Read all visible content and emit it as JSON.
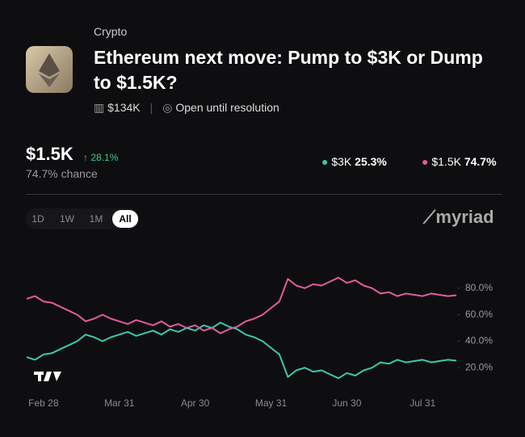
{
  "header": {
    "category": "Crypto",
    "title": "Ethereum next move: Pump to $3K or Dump to $1.5K?",
    "volume": "$134K",
    "status": "Open until resolution"
  },
  "summary": {
    "price": "$1.5K",
    "change": "28.1%",
    "chance": "74.7% chance",
    "legend_values": [
      "25.3%",
      "74.7%"
    ]
  },
  "tabs": [
    "1D",
    "1W",
    "1M",
    "All"
  ],
  "brand": "myriad",
  "chart_data": {
    "type": "line",
    "categories": [
      null,
      null,
      "Feb 28",
      null,
      null,
      null,
      null,
      null,
      null,
      null,
      null,
      "Mar 31",
      null,
      null,
      null,
      null,
      null,
      null,
      null,
      null,
      "Apr 30",
      null,
      null,
      null,
      null,
      null,
      null,
      null,
      null,
      "May 31",
      null,
      null,
      null,
      null,
      null,
      null,
      null,
      null,
      "Jun 30",
      null,
      null,
      null,
      null,
      null,
      null,
      null,
      null,
      "Jul 31",
      null,
      null,
      null,
      null
    ],
    "series": [
      {
        "name": "$3K",
        "color": "#3cc9ad",
        "values": [
          28,
          26,
          30,
          31,
          34,
          37,
          40,
          45,
          43,
          40,
          43,
          45,
          47,
          44,
          46,
          48,
          45,
          49,
          47,
          50,
          48,
          52,
          50,
          54,
          51,
          49,
          45,
          43,
          40,
          35,
          30,
          13,
          18,
          20,
          17,
          18,
          15,
          12,
          16,
          14,
          18,
          20,
          24,
          23,
          26,
          24,
          25,
          26,
          24,
          25,
          26,
          25.3
        ]
      },
      {
        "name": "$1.5K",
        "color": "#e45c9c",
        "values": [
          72,
          74,
          70,
          69,
          66,
          63,
          60,
          55,
          57,
          60,
          57,
          55,
          53,
          56,
          54,
          52,
          55,
          51,
          53,
          50,
          52,
          48,
          50,
          46,
          49,
          51,
          55,
          57,
          60,
          65,
          70,
          87,
          82,
          80,
          83,
          82,
          85,
          88,
          84,
          86,
          82,
          80,
          76,
          77,
          74,
          76,
          75,
          74,
          76,
          75,
          74,
          74.7
        ]
      }
    ],
    "ylim": [
      0,
      100
    ],
    "yticks": [
      {
        "value": 20,
        "label": "20.0%"
      },
      {
        "value": 40,
        "label": "40.0%"
      },
      {
        "value": 60,
        "label": "60.0%"
      },
      {
        "value": 80,
        "label": "80.0%"
      }
    ]
  }
}
